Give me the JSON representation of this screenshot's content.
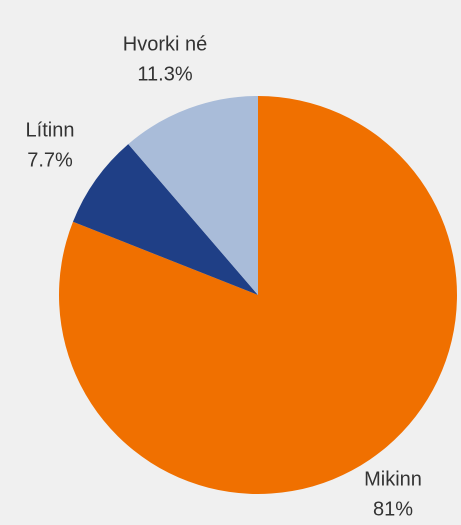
{
  "chart_data": {
    "type": "pie",
    "categories": [
      "Mikinn",
      "Lítinn",
      "Hvorki né"
    ],
    "values": [
      81,
      7.7,
      11.3
    ],
    "value_labels": [
      "81%",
      "7.7%",
      "11.3%"
    ],
    "colors": [
      "#f07000",
      "#1f3f86",
      "#a9bcd9"
    ]
  }
}
